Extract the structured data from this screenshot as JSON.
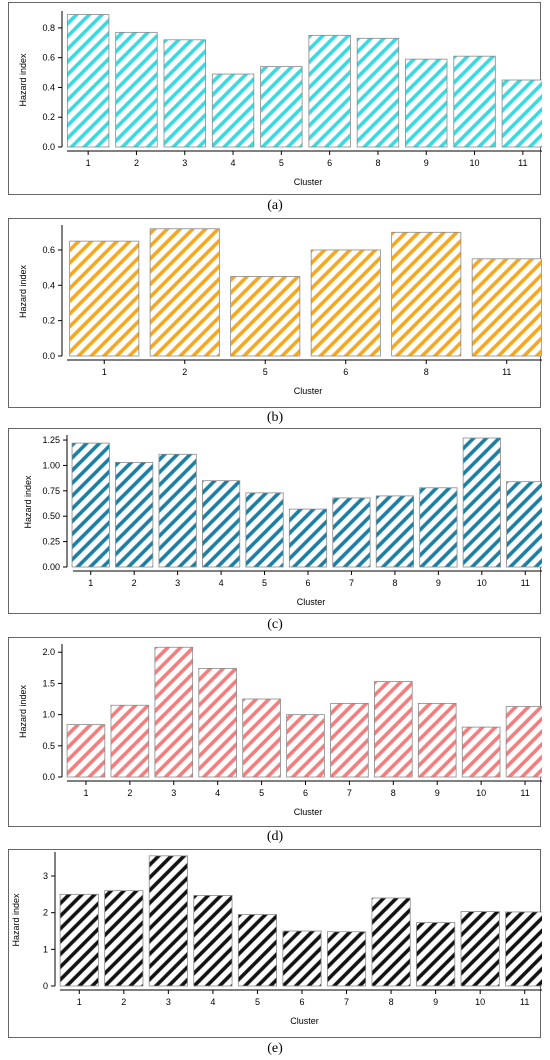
{
  "chart_data": [
    {
      "type": "bar",
      "caption": "(a)",
      "xlabel": "Cluster",
      "ylabel": "Hazard index",
      "categories": [
        "1",
        "2",
        "3",
        "4",
        "5",
        "6",
        "8",
        "9",
        "10",
        "11"
      ],
      "values": [
        0.89,
        0.77,
        0.72,
        0.49,
        0.54,
        0.75,
        0.73,
        0.59,
        0.61,
        0.45
      ],
      "ylim": [
        0,
        0.9
      ],
      "yticks": [
        0.0,
        0.2,
        0.4,
        0.6,
        0.8
      ],
      "ytick_labels": [
        "0.0",
        "0.2",
        "0.4",
        "0.6",
        "0.8"
      ],
      "color": "#38d9e0",
      "hatch": "diagonal",
      "grid": false
    },
    {
      "type": "bar",
      "caption": "(b)",
      "xlabel": "Cluster",
      "ylabel": "Hazard index",
      "categories": [
        "1",
        "2",
        "5",
        "6",
        "8",
        "11"
      ],
      "values": [
        0.65,
        0.72,
        0.45,
        0.6,
        0.7,
        0.55
      ],
      "ylim": [
        0,
        0.73
      ],
      "yticks": [
        0.0,
        0.2,
        0.4,
        0.6
      ],
      "ytick_labels": [
        "0.0",
        "0.2",
        "0.4",
        "0.6"
      ],
      "color": "#f5a81e",
      "hatch": "diagonal",
      "grid": false
    },
    {
      "type": "bar",
      "caption": "(c)",
      "xlabel": "Cluster",
      "ylabel": "Hazard index",
      "categories": [
        "1",
        "2",
        "3",
        "4",
        "5",
        "6",
        "7",
        "8",
        "9",
        "10",
        "11"
      ],
      "values": [
        1.22,
        1.03,
        1.11,
        0.85,
        0.73,
        0.57,
        0.68,
        0.7,
        0.78,
        1.27,
        0.84
      ],
      "ylim": [
        0,
        1.28
      ],
      "yticks": [
        0.0,
        0.25,
        0.5,
        0.75,
        1.0,
        1.25
      ],
      "ytick_labels": [
        "0.00",
        "0.25",
        "0.50",
        "0.75",
        "1.00",
        "1.25"
      ],
      "color": "#1b7ea3",
      "hatch": "diagonal",
      "grid": false
    },
    {
      "type": "bar",
      "caption": "(d)",
      "xlabel": "Cluster",
      "ylabel": "Hazard index",
      "categories": [
        "1",
        "2",
        "3",
        "4",
        "5",
        "6",
        "7",
        "8",
        "9",
        "10",
        "11"
      ],
      "values": [
        0.84,
        1.15,
        2.08,
        1.74,
        1.25,
        1.0,
        1.18,
        1.53,
        1.18,
        0.8,
        1.13
      ],
      "ylim": [
        0,
        2.1
      ],
      "yticks": [
        0.0,
        0.5,
        1.0,
        1.5,
        2.0
      ],
      "ytick_labels": [
        "0.0",
        "0.5",
        "1.0",
        "1.5",
        "2.0"
      ],
      "color": "#f47c7c",
      "hatch": "diagonal",
      "grid": false
    },
    {
      "type": "bar",
      "caption": "(e)",
      "xlabel": "Cluster",
      "ylabel": "Hazard index",
      "categories": [
        "1",
        "2",
        "3",
        "4",
        "5",
        "6",
        "7",
        "8",
        "9",
        "10",
        "11"
      ],
      "values": [
        2.5,
        2.6,
        3.55,
        2.47,
        1.95,
        1.5,
        1.48,
        2.4,
        1.73,
        2.03,
        2.02
      ],
      "ylim": [
        0,
        3.6
      ],
      "yticks": [
        0,
        1,
        2,
        3
      ],
      "ytick_labels": [
        "0",
        "1",
        "2",
        "3"
      ],
      "color": "#111111",
      "hatch": "diagonal",
      "grid": false
    }
  ]
}
